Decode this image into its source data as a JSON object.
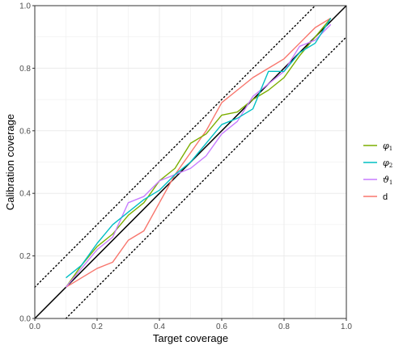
{
  "chart_data": {
    "type": "line",
    "title": "",
    "xlabel": "Target coverage",
    "ylabel": "Calibration coverage",
    "xlim": [
      0,
      1
    ],
    "ylim": [
      0,
      1
    ],
    "grid": true,
    "legend_position": "right",
    "x_ticks": [
      "0.0",
      "0.2",
      "0.4",
      "0.6",
      "0.8",
      "1.0"
    ],
    "y_ticks": [
      "0.0",
      "0.2",
      "0.4",
      "0.6",
      "0.8",
      "1.0"
    ],
    "reference_lines": [
      {
        "style": "solid",
        "color": "#000000",
        "points": [
          [
            0,
            0
          ],
          [
            1,
            1
          ]
        ]
      },
      {
        "style": "dotted",
        "color": "#000000",
        "points": [
          [
            0,
            0.1
          ],
          [
            0.9,
            1
          ]
        ]
      },
      {
        "style": "dotted",
        "color": "#000000",
        "points": [
          [
            0.1,
            0
          ],
          [
            1,
            0.9
          ]
        ]
      }
    ],
    "series": [
      {
        "name": "φ",
        "subscript": "1",
        "color": "#7CAE00",
        "x": [
          0.1,
          0.15,
          0.2,
          0.25,
          0.3,
          0.35,
          0.4,
          0.45,
          0.5,
          0.55,
          0.6,
          0.65,
          0.7,
          0.75,
          0.8,
          0.85,
          0.9,
          0.95
        ],
        "y": [
          0.1,
          0.17,
          0.23,
          0.27,
          0.33,
          0.37,
          0.44,
          0.48,
          0.56,
          0.59,
          0.65,
          0.66,
          0.7,
          0.73,
          0.77,
          0.84,
          0.9,
          0.96
        ]
      },
      {
        "name": "φ",
        "subscript": "2",
        "color": "#00BFC4",
        "x": [
          0.1,
          0.15,
          0.2,
          0.25,
          0.3,
          0.35,
          0.4,
          0.45,
          0.5,
          0.55,
          0.6,
          0.65,
          0.7,
          0.75,
          0.8,
          0.85,
          0.9,
          0.95
        ],
        "y": [
          0.13,
          0.17,
          0.24,
          0.3,
          0.34,
          0.38,
          0.41,
          0.46,
          0.5,
          0.56,
          0.62,
          0.64,
          0.67,
          0.79,
          0.79,
          0.85,
          0.88,
          0.96
        ]
      },
      {
        "name": "ϑ",
        "subscript": "1",
        "color": "#C77CFF",
        "x": [
          0.1,
          0.15,
          0.2,
          0.25,
          0.3,
          0.35,
          0.4,
          0.45,
          0.5,
          0.55,
          0.6,
          0.65,
          0.7,
          0.75,
          0.8,
          0.85,
          0.9,
          0.95
        ],
        "y": [
          0.1,
          0.16,
          0.22,
          0.26,
          0.37,
          0.39,
          0.44,
          0.46,
          0.48,
          0.52,
          0.59,
          0.63,
          0.71,
          0.75,
          0.79,
          0.87,
          0.89,
          0.94
        ]
      },
      {
        "name": "d",
        "subscript": "",
        "color": "#F8766D",
        "x": [
          0.1,
          0.15,
          0.2,
          0.25,
          0.3,
          0.35,
          0.4,
          0.45,
          0.5,
          0.55,
          0.6,
          0.65,
          0.7,
          0.75,
          0.8,
          0.85,
          0.9,
          0.95
        ],
        "y": [
          0.1,
          0.13,
          0.16,
          0.18,
          0.25,
          0.28,
          0.37,
          0.46,
          0.53,
          0.6,
          0.69,
          0.73,
          0.77,
          0.8,
          0.83,
          0.88,
          0.93,
          0.96
        ]
      }
    ]
  }
}
